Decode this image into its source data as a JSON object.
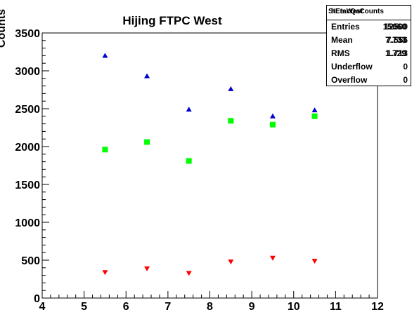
{
  "chart_data": {
    "type": "scatter",
    "title": "Hijing FTPC West",
    "xlabel": "",
    "ylabel": "Counts",
    "xlim": [
      4,
      12
    ],
    "ylim": [
      0,
      3500
    ],
    "xticks": [
      "4",
      "5",
      "6",
      "7",
      "8",
      "9",
      "10",
      "11",
      "12"
    ],
    "yticks": [
      "0",
      "500",
      "1000",
      "1500",
      "2000",
      "2500",
      "3000",
      "3500"
    ],
    "grid": false,
    "series": [
      {
        "color": "#0000cc",
        "marker": "triangle-up",
        "points": [
          [
            5.5,
            3200
          ],
          [
            6.5,
            2930
          ],
          [
            7.5,
            2490
          ],
          [
            8.5,
            2760
          ],
          [
            9.5,
            2400
          ],
          [
            10.5,
            2480
          ]
        ]
      },
      {
        "color": "#00ff00",
        "marker": "square",
        "points": [
          [
            5.5,
            1960
          ],
          [
            6.5,
            2060
          ],
          [
            7.5,
            1810
          ],
          [
            8.5,
            2340
          ],
          [
            9.5,
            2290
          ],
          [
            10.5,
            2400
          ]
        ]
      },
      {
        "color": "#ff0000",
        "marker": "triangle-down",
        "points": [
          [
            5.5,
            340
          ],
          [
            6.5,
            390
          ],
          [
            7.5,
            330
          ],
          [
            8.5,
            480
          ],
          [
            9.5,
            530
          ],
          [
            10.5,
            490
          ]
        ]
      }
    ]
  },
  "stats_box": {
    "header_a": "StEmcQaCounts",
    "header_b": "hEtaWest",
    "rows": [
      {
        "label": "Entries",
        "value_a": "12500",
        "value_b": "15060"
      },
      {
        "label": "Mean",
        "value_a": "7.556",
        "value_b": "7.733"
      },
      {
        "label": "RMS",
        "value_a": "1.713",
        "value_b": "1.729"
      },
      {
        "label": "Underflow",
        "value_a": "0"
      },
      {
        "label": "Overflow",
        "value_a": "0"
      }
    ]
  }
}
